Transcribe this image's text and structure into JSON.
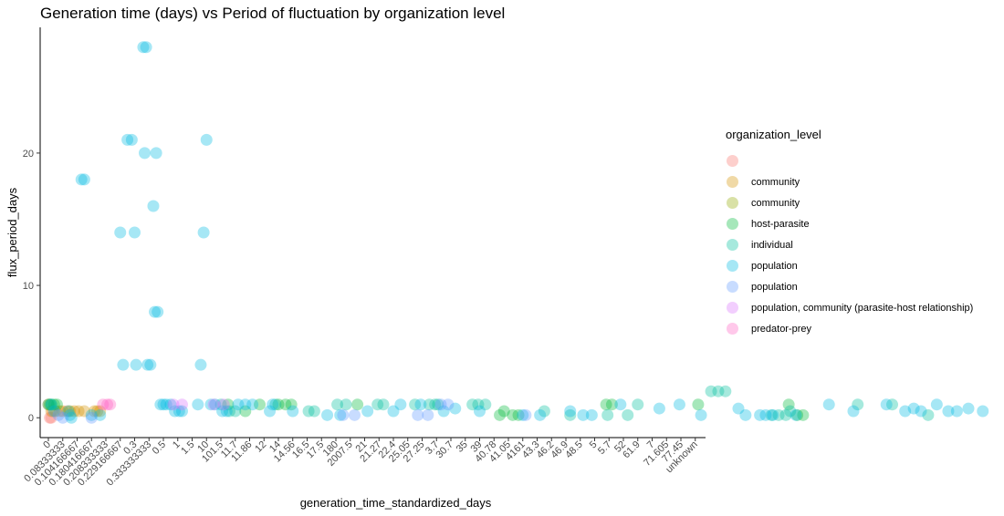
{
  "chart_data": {
    "type": "scatter",
    "title": "Generation time (days) vs Period of fluctuation by organization level",
    "xlabel": "generation_time_standardized_days",
    "ylabel": "flux_period_days",
    "ylim": [
      -1.5,
      29.5
    ],
    "y_ticks": [
      0,
      10,
      20
    ],
    "categories": [
      "0",
      "0.08333333",
      "0.104166667",
      "0.180416667",
      "0.208333333",
      "0.229166667",
      "0.3",
      "0.333333333",
      "0.5",
      "1",
      "1.5",
      "10",
      "101.5",
      "11.7",
      "11.86",
      "12",
      "14",
      "14.56",
      "16.5",
      "17.5",
      "180",
      "2007.5",
      "21",
      "21.27",
      "22.4",
      "25.05",
      "27.25",
      "3.7",
      "30.7",
      "35",
      "39",
      "40.78",
      "41.05",
      "4161",
      "43.3",
      "46.2",
      "46.9",
      "48.5",
      "5",
      "5.7",
      "52",
      "61.9",
      "7",
      "71.605",
      "77.45",
      "unknown"
    ],
    "legend_title": "organization_level",
    "legend_position": "right",
    "grid": false,
    "point_opacity": 0.35,
    "series": [
      {
        "name": "",
        "color": "#F8766D",
        "points": [
          [
            0,
            1
          ],
          [
            0.1,
            0
          ],
          [
            0.2,
            0
          ],
          [
            0.3,
            0.5
          ],
          [
            1.3,
            0.5
          ]
        ]
      },
      {
        "name": "community",
        "color": "#D39200",
        "points": [
          [
            0.2,
            0.5
          ],
          [
            0.5,
            0.5
          ],
          [
            0.8,
            0.5
          ],
          [
            1.0,
            0.5
          ],
          [
            1.5,
            0.5
          ],
          [
            1.8,
            0.5
          ],
          [
            2.1,
            0.5
          ],
          [
            2.5,
            0.5
          ],
          [
            3.2,
            0.5
          ],
          [
            3.4,
            0.5
          ],
          [
            3.6,
            0.5
          ]
        ]
      },
      {
        "name": "community",
        "color": "#93AA00",
        "points": []
      },
      {
        "name": "host-parasite",
        "color": "#00BA38",
        "points": [
          [
            0,
            1
          ],
          [
            0.1,
            1
          ],
          [
            0.2,
            1
          ],
          [
            0.4,
            1
          ],
          [
            0.6,
            1
          ],
          [
            12.5,
            1
          ],
          [
            13.7,
            0.5
          ],
          [
            14.7,
            1
          ],
          [
            16.0,
            1
          ],
          [
            16.5,
            1
          ],
          [
            16.9,
            1
          ],
          [
            21.5,
            1
          ],
          [
            31.7,
            0.5
          ],
          [
            31.4,
            0.2
          ],
          [
            32.3,
            0.2
          ],
          [
            32.7,
            0.2
          ],
          [
            38.8,
            1
          ],
          [
            39.2,
            1
          ],
          [
            45.2,
            1
          ],
          [
            51.5,
            1
          ],
          [
            52.1,
            0.2
          ],
          [
            52.5,
            0.2
          ]
        ]
      },
      {
        "name": "individual",
        "color": "#00C19F",
        "points": [
          [
            1.4,
            0.5
          ],
          [
            12.0,
            1
          ],
          [
            12.6,
            0.5
          ],
          [
            13.0,
            0.5
          ],
          [
            15.8,
            1
          ],
          [
            18.1,
            0.5
          ],
          [
            18.5,
            0.5
          ],
          [
            20.1,
            1
          ],
          [
            20.7,
            1
          ],
          [
            22.9,
            1
          ],
          [
            23.3,
            1
          ],
          [
            25.5,
            1
          ],
          [
            26.5,
            1
          ],
          [
            26.9,
            1
          ],
          [
            27.1,
            1
          ],
          [
            29.5,
            1
          ],
          [
            29.9,
            1
          ],
          [
            30.4,
            1
          ],
          [
            34.5,
            0.5
          ],
          [
            36.3,
            0.2
          ],
          [
            38.9,
            0.2
          ],
          [
            40.3,
            0.2
          ],
          [
            41.0,
            1
          ],
          [
            46.1,
            2
          ],
          [
            46.6,
            2
          ],
          [
            47.1,
            2
          ],
          [
            50.3,
            0.2
          ],
          [
            50.8,
            0.2
          ],
          [
            51.3,
            0.2
          ],
          [
            51.6,
            0.5
          ],
          [
            56.3,
            1
          ],
          [
            58.7,
            1
          ],
          [
            61.2,
            0.2
          ]
        ]
      },
      {
        "name": "population",
        "color": "#00B9E3",
        "points": [
          [
            0.2,
            1
          ],
          [
            0.4,
            0.5
          ],
          [
            1.5,
            0.2
          ],
          [
            1.6,
            0
          ],
          [
            2.3,
            18
          ],
          [
            2.5,
            18
          ],
          [
            3.0,
            0.2
          ],
          [
            3.6,
            0.2
          ],
          [
            5.0,
            14
          ],
          [
            5.2,
            4
          ],
          [
            5.5,
            21
          ],
          [
            5.8,
            21
          ],
          [
            6.0,
            14
          ],
          [
            6.1,
            4
          ],
          [
            6.6,
            28
          ],
          [
            6.8,
            28
          ],
          [
            6.7,
            20
          ],
          [
            6.9,
            4
          ],
          [
            7.1,
            4
          ],
          [
            7.3,
            16
          ],
          [
            7.4,
            8
          ],
          [
            7.5,
            20
          ],
          [
            7.6,
            8
          ],
          [
            7.8,
            1
          ],
          [
            8.0,
            1
          ],
          [
            8.2,
            1
          ],
          [
            8.5,
            1
          ],
          [
            8.8,
            0.5
          ],
          [
            9.1,
            0.5
          ],
          [
            9.3,
            0.5
          ],
          [
            10.4,
            1
          ],
          [
            10.6,
            4
          ],
          [
            10.8,
            14
          ],
          [
            11.0,
            21
          ],
          [
            11.3,
            1
          ],
          [
            11.6,
            1
          ],
          [
            12.1,
            0.5
          ],
          [
            12.4,
            0.5
          ],
          [
            13.2,
            1
          ],
          [
            13.7,
            1
          ],
          [
            14.2,
            1
          ],
          [
            15.4,
            0.5
          ],
          [
            15.6,
            1
          ],
          [
            17.0,
            0.5
          ],
          [
            19.4,
            0.2
          ],
          [
            20.3,
            0.2
          ],
          [
            22.2,
            0.5
          ],
          [
            24.0,
            0.5
          ],
          [
            24.5,
            1
          ],
          [
            25.9,
            1
          ],
          [
            27.5,
            0.5
          ],
          [
            28.3,
            0.7
          ],
          [
            30.0,
            0.5
          ],
          [
            33.0,
            0.2
          ],
          [
            34.2,
            0.2
          ],
          [
            36.3,
            0.5
          ],
          [
            37.2,
            0.2
          ],
          [
            37.8,
            0.2
          ],
          [
            39.8,
            1
          ],
          [
            42.5,
            0.7
          ],
          [
            43.9,
            1
          ],
          [
            45.4,
            0.2
          ],
          [
            48.0,
            0.7
          ],
          [
            48.5,
            0.2
          ],
          [
            49.5,
            0.2
          ],
          [
            49.9,
            0.2
          ],
          [
            50.4,
            0.2
          ],
          [
            52.0,
            0.2
          ],
          [
            54.3,
            1
          ],
          [
            56.0,
            0.5
          ],
          [
            58.3,
            1
          ],
          [
            59.6,
            0.5
          ],
          [
            60.2,
            0.7
          ],
          [
            60.7,
            0.5
          ],
          [
            61.8,
            1
          ],
          [
            62.6,
            0.5
          ],
          [
            63.2,
            0.5
          ],
          [
            64.0,
            0.7
          ],
          [
            65.0,
            0.5
          ]
        ]
      },
      {
        "name": "population",
        "color": "#619CFF",
        "points": [
          [
            0.7,
            0.2
          ],
          [
            1.0,
            0
          ],
          [
            3.0,
            0
          ],
          [
            20.5,
            0.2
          ],
          [
            21.3,
            0.2
          ],
          [
            25.7,
            0.2
          ],
          [
            26.4,
            0.2
          ],
          [
            27.3,
            1
          ],
          [
            27.8,
            1
          ],
          [
            33.2,
            0.2
          ]
        ]
      },
      {
        "name": "population, community (parasite-host relationship)",
        "color": "#DB72FB",
        "points": [
          [
            8.7,
            1
          ],
          [
            11.5,
            1
          ],
          [
            12.2,
            1
          ],
          [
            9.3,
            1
          ]
        ]
      },
      {
        "name": "predator-prey",
        "color": "#FF61C3",
        "points": [
          [
            3.8,
            1
          ],
          [
            4.1,
            1
          ],
          [
            4.3,
            1
          ]
        ]
      }
    ]
  }
}
